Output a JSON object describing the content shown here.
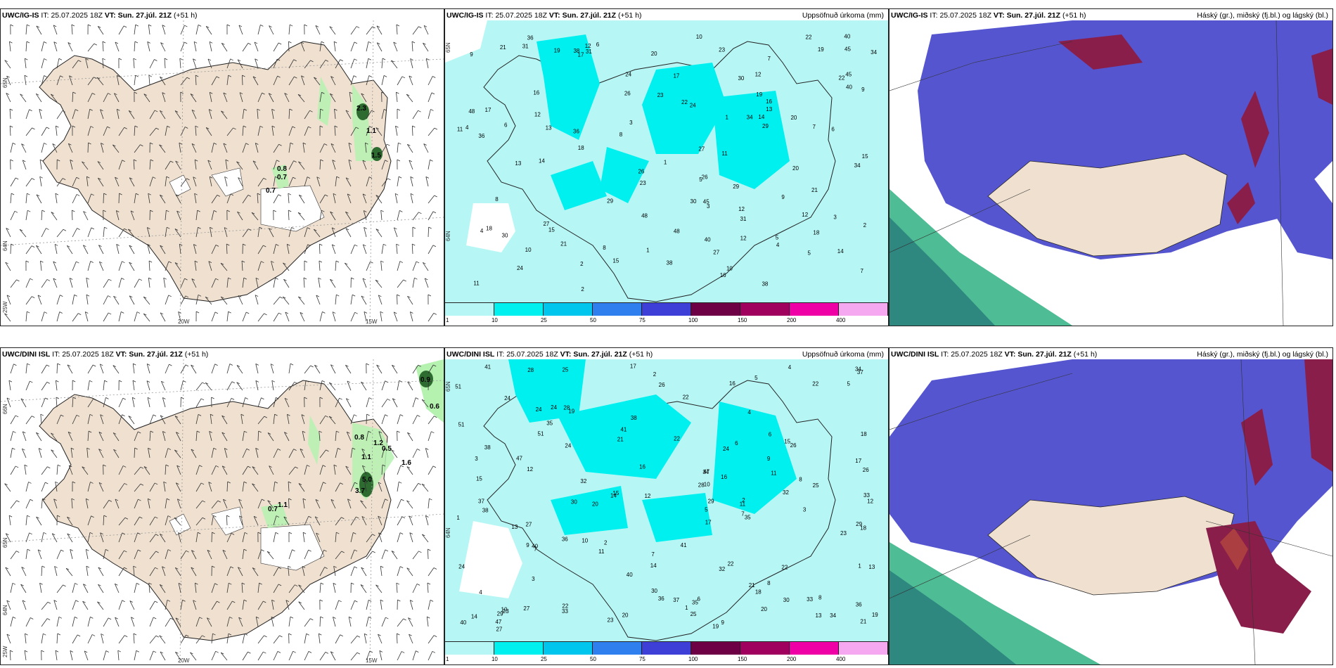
{
  "panels": [
    {
      "id": "p11",
      "model": "UWC/IG-IS",
      "it_label": "IT:",
      "it_value": "25.07.2025 18Z",
      "vt_label": "VT:",
      "vt_value": "Sun. 27.júl. 21Z",
      "lead": "(+51 h)",
      "right_title": "",
      "values": [
        "2.3",
        "1.1",
        "1.5",
        "0.8",
        "0.7",
        "0.7"
      ],
      "lon_labels": [
        "20W",
        "15W"
      ],
      "lat_labels": [
        "65N",
        "64N",
        "25W"
      ]
    },
    {
      "id": "p12",
      "model": "UWC/IG-IS",
      "it_label": "IT:",
      "it_value": "25.07.2025 18Z",
      "vt_label": "VT:",
      "vt_value": "Sun. 27.júl. 21Z",
      "lead": "(+51 h)",
      "right_title": "Uppsöfnuð úrkoma (mm)",
      "values": [
        "10",
        "17",
        "15",
        "12",
        "20",
        "27",
        "34",
        "18",
        "23",
        "21",
        "30",
        "48",
        "26",
        "45",
        "29",
        "22",
        "36",
        "19",
        "9",
        "7",
        "5",
        "3",
        "2",
        "4",
        "11",
        "16",
        "14",
        "13",
        "38",
        "24",
        "31",
        "40",
        "12",
        "8",
        "6",
        "1"
      ],
      "lat_labels": [
        "65N",
        "64N"
      ]
    },
    {
      "id": "p13",
      "model": "UWC/IG-IS",
      "it_label": "IT:",
      "it_value": "25.07.2025 18Z",
      "vt_label": "VT:",
      "vt_value": "Sun. 27.júl. 21Z",
      "lead": "(+51 h)",
      "right_title": "Háský (gr.), miðský (fj.bl.) og lágský (bl.)"
    },
    {
      "id": "p21",
      "model": "UWC/DINI ISL",
      "it_label": "IT:",
      "it_value": "25.07.2025 18Z",
      "vt_label": "VT:",
      "vt_value": "Sun. 27.júl. 21Z",
      "lead": "(+51 h)",
      "right_title": "",
      "values": [
        "0.9",
        "0.6",
        "0.8",
        "1.2",
        "0.5",
        "1.1",
        "1.6",
        "5.0",
        "3.7",
        "1.1",
        "0.7"
      ],
      "lon_labels": [
        "20W",
        "15W"
      ],
      "lat_labels": [
        "66N",
        "65N",
        "64N",
        "25W"
      ]
    },
    {
      "id": "p22",
      "model": "UWC/DINI ISL",
      "it_label": "IT:",
      "it_value": "25.07.2025 18Z",
      "vt_label": "VT:",
      "vt_value": "Sun. 27.júl. 21Z",
      "lead": "(+51 h)",
      "right_title": "Uppsöfnuð úrkoma (mm)",
      "values": [
        "23",
        "19",
        "22",
        "18",
        "25",
        "24",
        "30",
        "34",
        "17",
        "21",
        "22",
        "36",
        "15",
        "14",
        "16",
        "28",
        "38",
        "33",
        "20",
        "51",
        "32",
        "37",
        "47",
        "29",
        "26",
        "27",
        "24",
        "40",
        "41",
        "35",
        "12",
        "9",
        "7",
        "5",
        "3",
        "2",
        "1",
        "4",
        "6",
        "8",
        "10",
        "11",
        "13"
      ],
      "lat_labels": [
        "65N",
        "64N"
      ]
    },
    {
      "id": "p23",
      "model": "UWC/DINI ISL",
      "it_label": "IT:",
      "it_value": "25.07.2025 18Z",
      "vt_label": "VT:",
      "vt_value": "Sun. 27.júl. 21Z",
      "lead": "(+51 h)",
      "right_title": "Háský (gr.), miðský (fj.bl.) og lágský (bl.)"
    }
  ],
  "colorbar": {
    "ticks": [
      "1",
      "10",
      "25",
      "50",
      "75",
      "100",
      "150",
      "200",
      "400"
    ],
    "colors": [
      "#b6f7f6",
      "#00f0f0",
      "#00c6ee",
      "#2f7fef",
      "#3d3fd6",
      "#6e0045",
      "#a0005e",
      "#ef00a6",
      "#f5a8f0"
    ]
  },
  "colors": {
    "land": "#efe0d0",
    "sea": "#ffffff",
    "precip_bg": "#b6f7f6",
    "precip_mid": "#00f0f0",
    "green_light": "#b5f2b0",
    "green_dark": "#2e6b30",
    "cloud_low": "#5555cf",
    "cloud_mid": "#4aa2e8",
    "cloud_high": "#8a1e4a",
    "cloud_green": "#3bb68a"
  }
}
